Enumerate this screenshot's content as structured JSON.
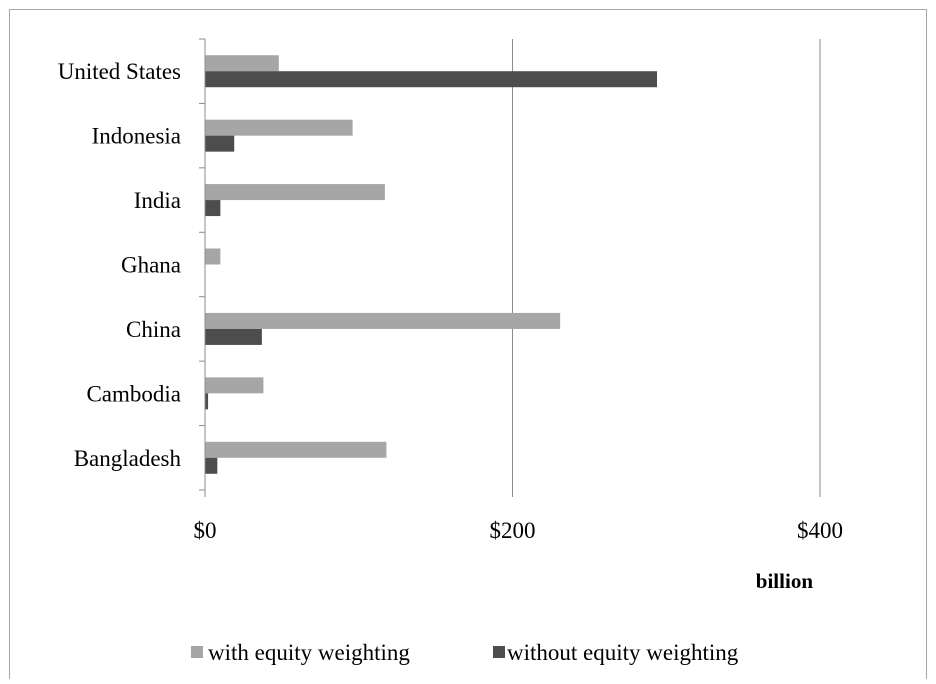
{
  "chart_data": {
    "type": "bar",
    "orientation": "horizontal",
    "categories": [
      "Bangladesh",
      "Cambodia",
      "China",
      "Ghana",
      "India",
      "Indonesia",
      "United States"
    ],
    "series": [
      {
        "name": "with equity weighting",
        "values": [
          118,
          38,
          231,
          10,
          117,
          96,
          48
        ],
        "color": "#a6a6a6"
      },
      {
        "name": "without equity weighting",
        "values": [
          8,
          2,
          37,
          0,
          10,
          19,
          294
        ],
        "color": "#4d4d4d"
      }
    ],
    "xlim": [
      0,
      400
    ],
    "x_ticks": [
      0,
      200,
      400
    ],
    "x_tick_labels": [
      "$0",
      "$200",
      "$400"
    ],
    "unit_label": "billion",
    "grid": "vertical",
    "legend_position": "bottom"
  }
}
